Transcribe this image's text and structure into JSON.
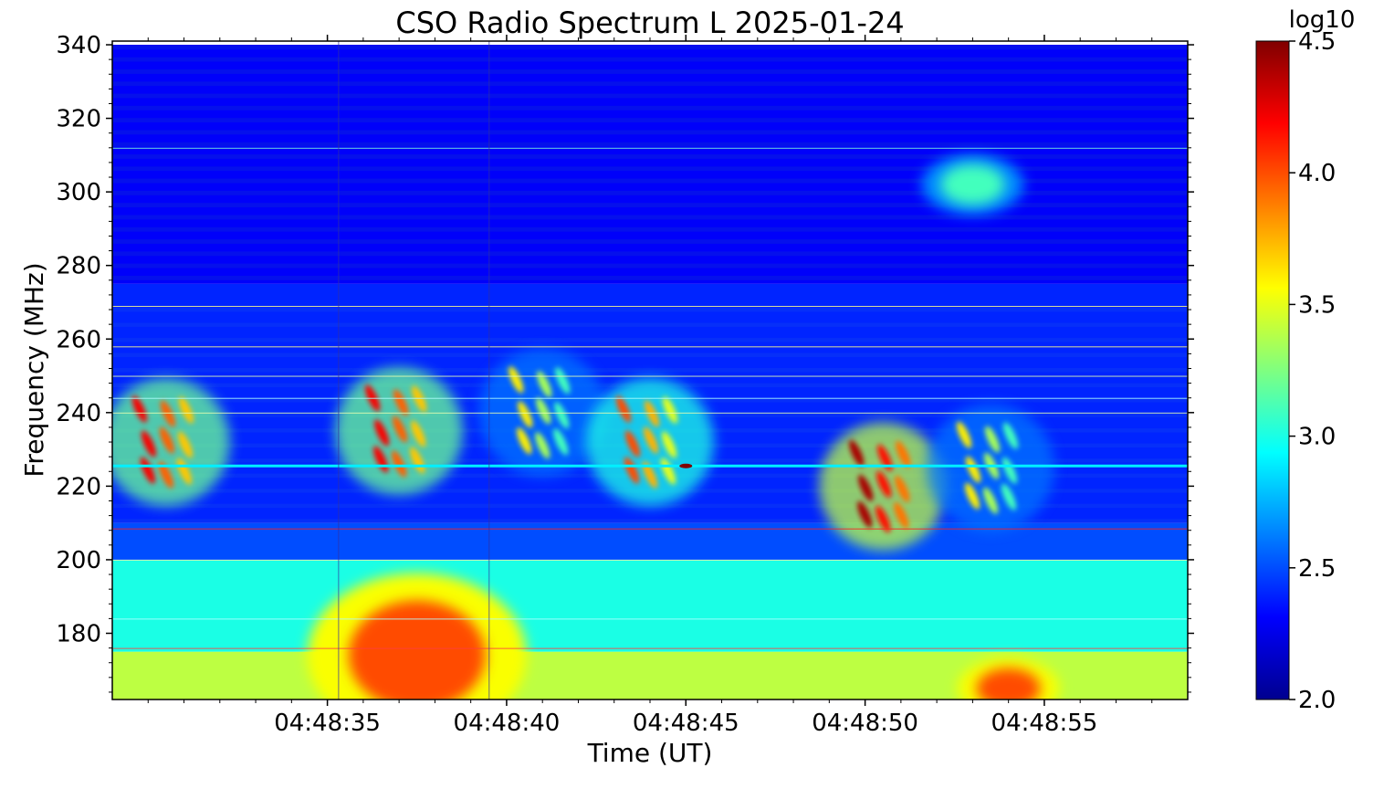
{
  "chart_data": {
    "type": "heatmap",
    "title": "CSO Radio Spectrum L 2025-01-24",
    "xlabel": "Time (UT)",
    "ylabel": "Frequency (MHz)",
    "xlim": [
      "04:48:29",
      "04:48:59"
    ],
    "ylim": [
      162,
      341
    ],
    "x_ticks": [
      "04:48:35",
      "04:48:40",
      "04:48:45",
      "04:48:50",
      "04:48:55"
    ],
    "y_ticks": [
      180,
      200,
      220,
      240,
      260,
      280,
      300,
      320,
      340
    ],
    "colorbar": {
      "label": "log10",
      "colormap": "jet",
      "range": [
        2.0,
        4.5
      ],
      "ticks": [
        "2.0",
        "2.5",
        "3.0",
        "3.5",
        "4.0",
        "4.5"
      ]
    },
    "background_levels": [
      {
        "band": "160-175 MHz",
        "level": 3.4
      },
      {
        "band": "175-200 MHz",
        "level": 3.0
      },
      {
        "band": "200-210 MHz",
        "level": 2.5
      },
      {
        "band": "210-275 MHz",
        "level": 2.4
      },
      {
        "band": "275-340 MHz",
        "level": 2.3
      }
    ],
    "features": [
      {
        "name": "continuum core",
        "t": "04:48:37.5",
        "f": 174,
        "level": 4.0
      },
      {
        "name": "burst group 1",
        "t": "04:48:37",
        "f": 235,
        "level": 4.2
      },
      {
        "name": "burst",
        "t": "04:48:30.5",
        "f": 232,
        "level": 4.2
      },
      {
        "name": "burst group 2",
        "t": "04:48:41",
        "f": 240,
        "level": 3.6
      },
      {
        "name": "burst group 3",
        "t": "04:48:44",
        "f": 232,
        "level": 4.0
      },
      {
        "name": "burst group 4",
        "t": "04:48:50.5",
        "f": 220,
        "level": 4.4
      },
      {
        "name": "burst group 5",
        "t": "04:48:53.5",
        "f": 225,
        "level": 3.6
      },
      {
        "name": "low-frequency patch",
        "t": "04:48:54",
        "f": 165,
        "level": 4.0
      },
      {
        "name": "high-frequency patch",
        "t": "04:48:53",
        "f": 302,
        "level": 3.1
      },
      {
        "name": "interference line",
        "t": "04:48:45",
        "f": 225.5,
        "level": 4.5
      }
    ]
  }
}
